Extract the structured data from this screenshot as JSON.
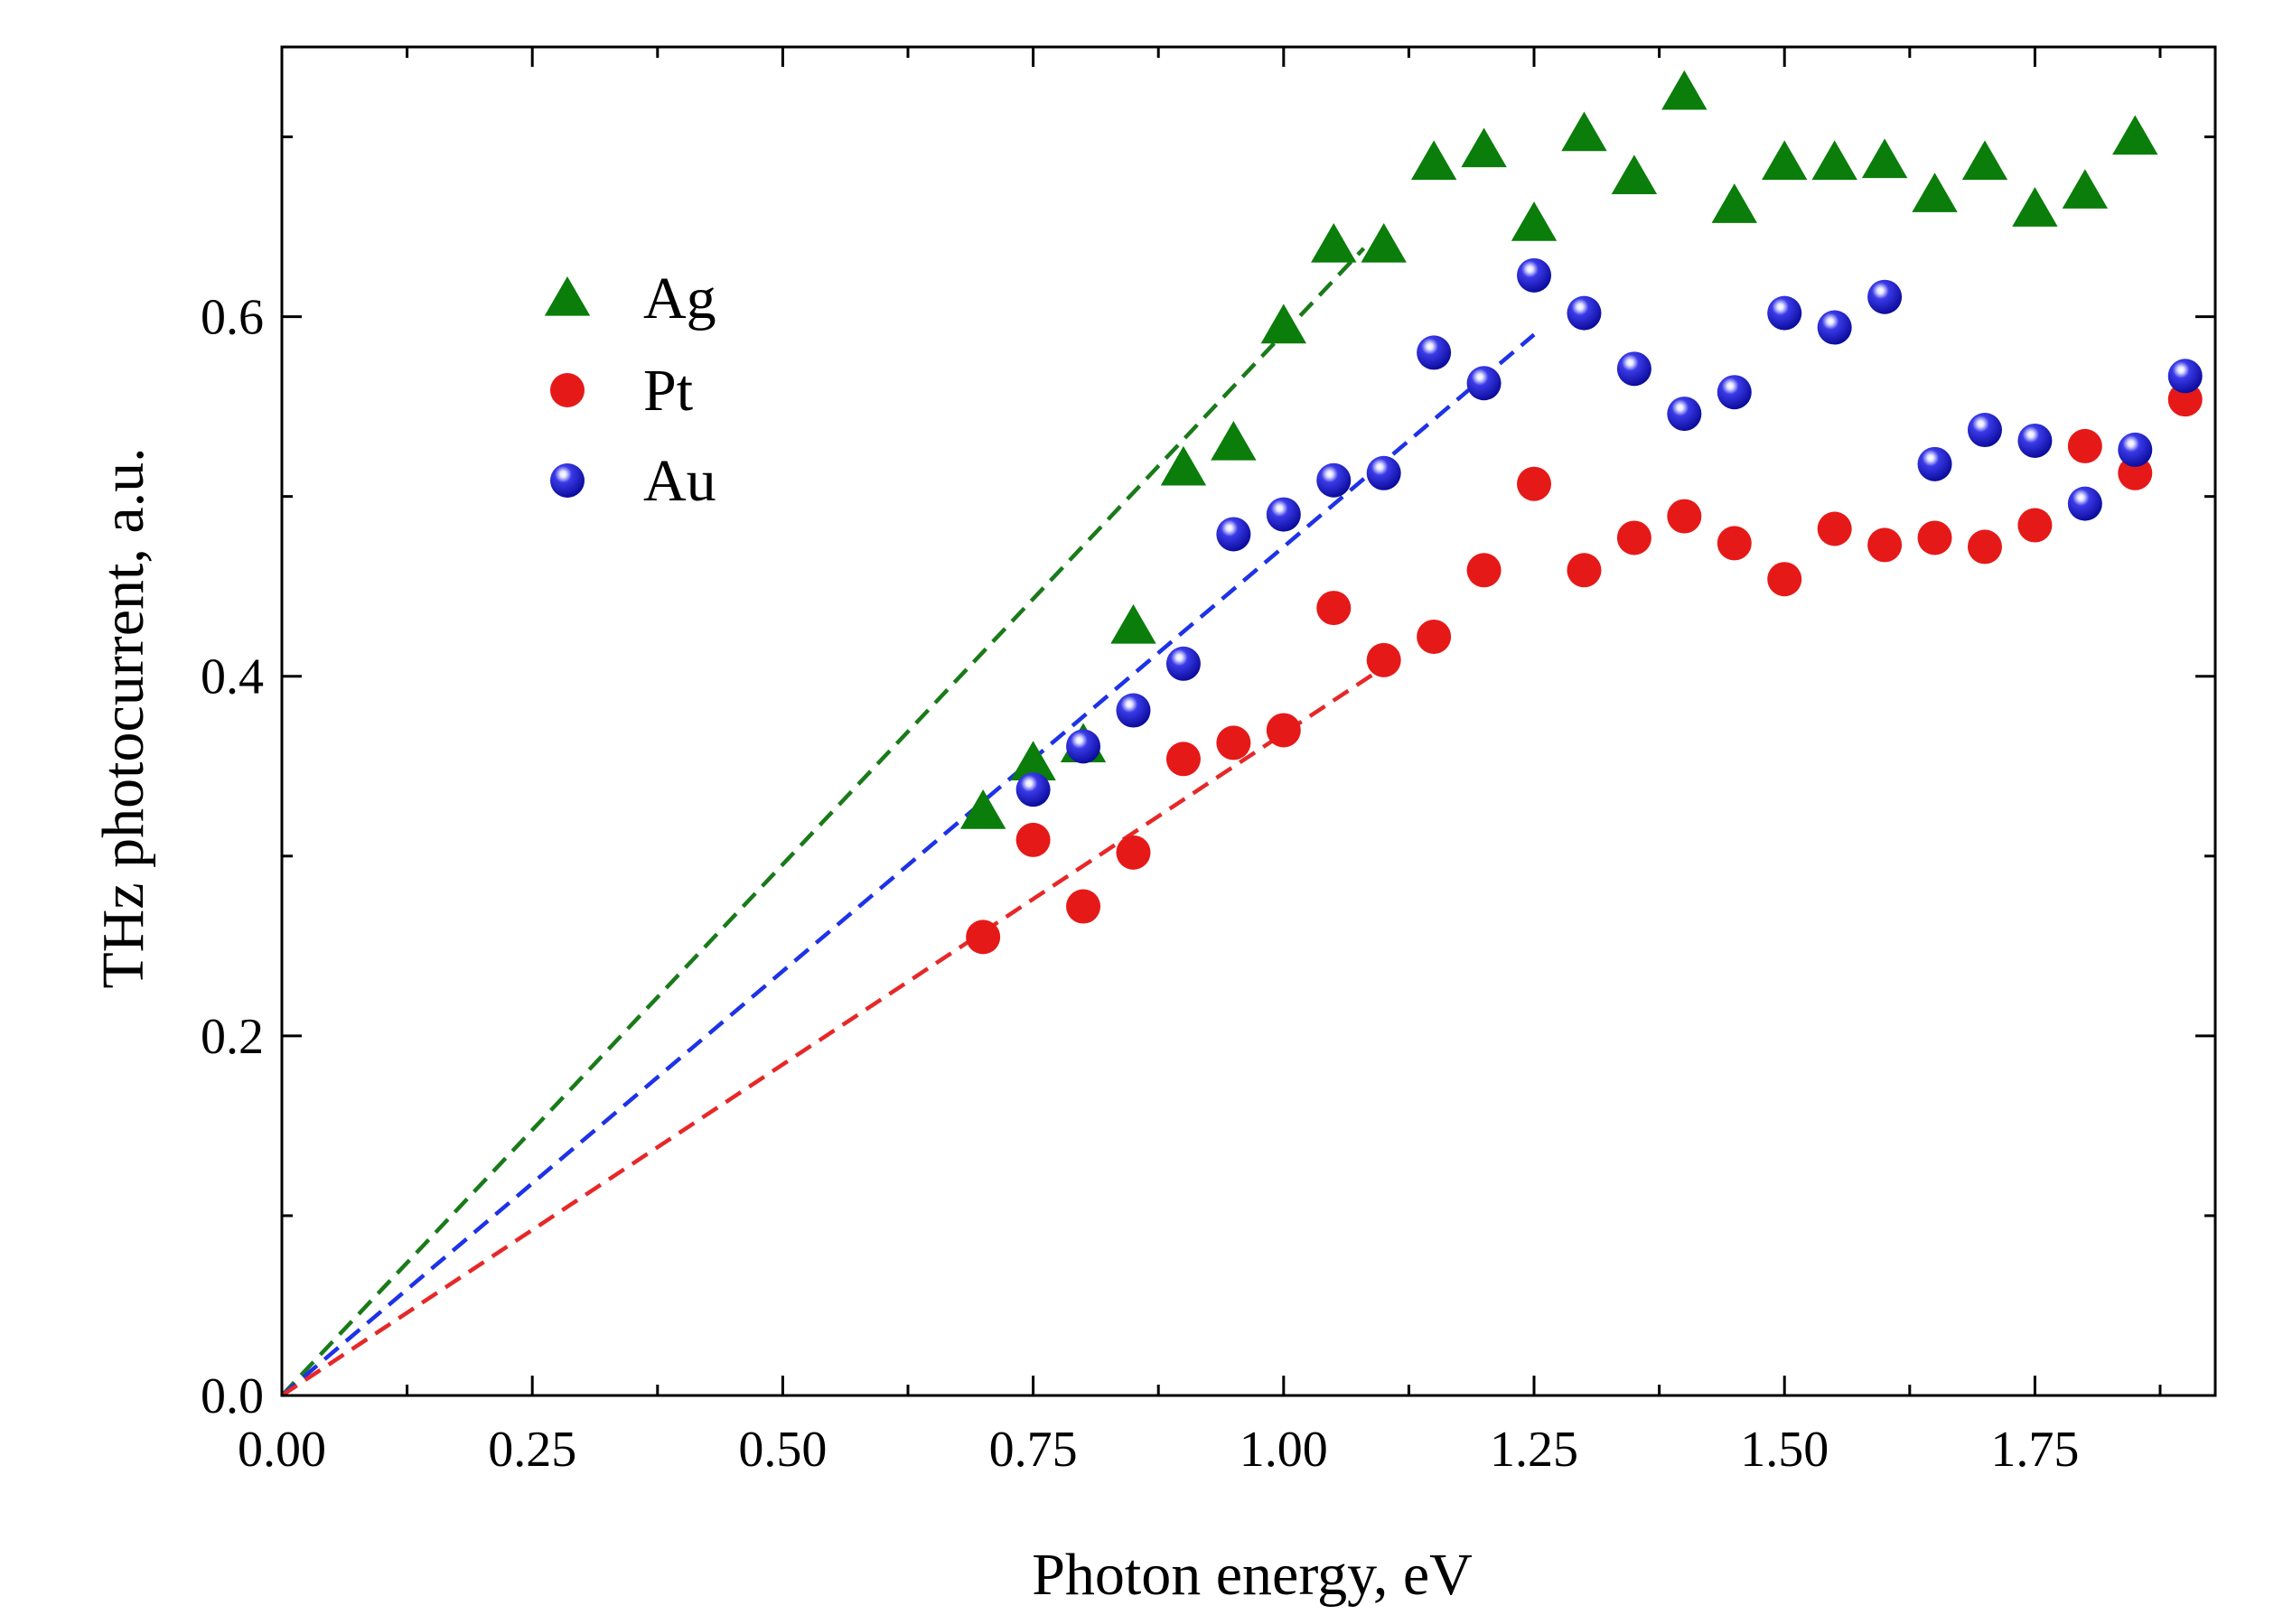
{
  "chart_data": {
    "type": "scatter",
    "title": "",
    "xlabel": "Photon energy, eV",
    "ylabel": "THz photocurrent, a.u.",
    "xlim": [
      0.0,
      1.93
    ],
    "ylim": [
      0.0,
      0.75
    ],
    "xticks": [
      0.0,
      0.25,
      0.5,
      0.75,
      1.0,
      1.25,
      1.5,
      1.75
    ],
    "xtick_labels": [
      "0.00",
      "0.25",
      "0.50",
      "0.75",
      "1.00",
      "1.25",
      "1.50",
      "1.75"
    ],
    "yticks": [
      0.0,
      0.2,
      0.4,
      0.6
    ],
    "ytick_labels": [
      "0.0",
      "0.2",
      "0.4",
      "0.6"
    ],
    "grid": false,
    "legend_position": "upper-left",
    "series": [
      {
        "name": "Ag",
        "marker": "triangle",
        "color": "#0a7d0a",
        "x": [
          0.7,
          0.75,
          0.8,
          0.85,
          0.9,
          0.95,
          1.0,
          1.05,
          1.1,
          1.15,
          1.2,
          1.25,
          1.3,
          1.35,
          1.4,
          1.45,
          1.5,
          1.55,
          1.6,
          1.65,
          1.7,
          1.75,
          1.8,
          1.85
        ],
        "y": [
          0.325,
          0.352,
          0.362,
          0.428,
          0.516,
          0.53,
          0.595,
          0.64,
          0.64,
          0.686,
          0.693,
          0.652,
          0.702,
          0.678,
          0.725,
          0.662,
          0.686,
          0.686,
          0.687,
          0.668,
          0.686,
          0.66,
          0.67,
          0.7
        ]
      },
      {
        "name": "Pt",
        "marker": "circle",
        "color": "#e61919",
        "x": [
          0.7,
          0.75,
          0.8,
          0.85,
          0.9,
          0.95,
          1.0,
          1.05,
          1.1,
          1.15,
          1.2,
          1.25,
          1.3,
          1.35,
          1.4,
          1.45,
          1.5,
          1.55,
          1.6,
          1.65,
          1.7,
          1.75,
          1.8,
          1.85,
          1.9
        ],
        "y": [
          0.255,
          0.309,
          0.272,
          0.302,
          0.354,
          0.363,
          0.37,
          0.438,
          0.409,
          0.422,
          0.459,
          0.507,
          0.459,
          0.477,
          0.489,
          0.474,
          0.454,
          0.482,
          0.473,
          0.477,
          0.472,
          0.484,
          0.528,
          0.513,
          0.554
        ]
      },
      {
        "name": "Au",
        "marker": "sphere",
        "color": "#1e1ee6",
        "x": [
          0.75,
          0.8,
          0.85,
          0.9,
          0.95,
          1.0,
          1.05,
          1.1,
          1.15,
          1.2,
          1.25,
          1.3,
          1.35,
          1.4,
          1.45,
          1.5,
          1.55,
          1.6,
          1.65,
          1.7,
          1.75,
          1.8,
          1.85,
          1.9
        ],
        "y": [
          0.337,
          0.361,
          0.381,
          0.407,
          0.479,
          0.49,
          0.509,
          0.513,
          0.58,
          0.563,
          0.623,
          0.602,
          0.571,
          0.546,
          0.558,
          0.602,
          0.594,
          0.611,
          0.518,
          0.537,
          0.531,
          0.496,
          0.526,
          0.567
        ]
      }
    ],
    "fit_lines": [
      {
        "series": "Ag",
        "color": "#1a7a1a",
        "x": [
          0.0,
          1.08
        ],
        "y": [
          0.0,
          0.638
        ]
      },
      {
        "series": "Au",
        "color": "#1e32e6",
        "x": [
          0.0,
          1.25
        ],
        "y": [
          0.0,
          0.59
        ]
      },
      {
        "series": "Pt",
        "color": "#e62828",
        "x": [
          0.0,
          1.1
        ],
        "y": [
          0.0,
          0.405
        ]
      }
    ]
  }
}
